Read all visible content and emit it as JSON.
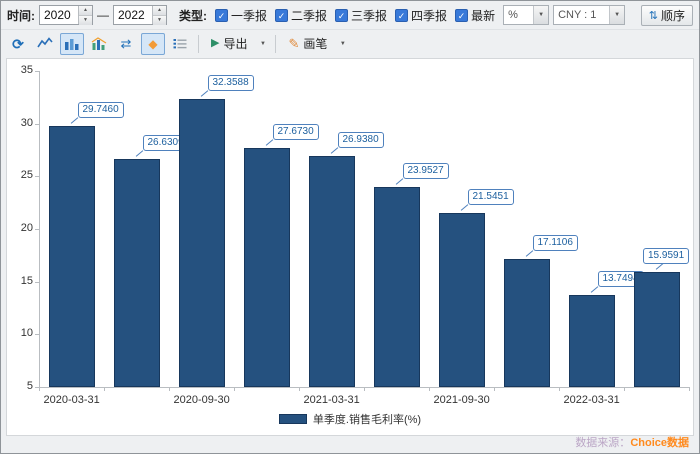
{
  "toolbar": {
    "time_label": "时间:",
    "year_from": "2020",
    "year_to": "2022",
    "dash": "—",
    "type_label": "类型:",
    "checkboxes": [
      {
        "label": "一季报",
        "checked": true
      },
      {
        "label": "二季报",
        "checked": true
      },
      {
        "label": "三季报",
        "checked": true
      },
      {
        "label": "四季报",
        "checked": true
      },
      {
        "label": "最新",
        "checked": true
      }
    ],
    "percent_dropdown": "%",
    "currency_dropdown": "CNY : 1",
    "order_label": "顺序"
  },
  "toolbar2": {
    "export_label": "导出",
    "brush_label": "画笔"
  },
  "icons": {
    "check": "✓",
    "spinner_up": "▲",
    "spinner_down": "▼",
    "caret": "▼",
    "updown": "⇅",
    "refresh": "⟳",
    "arrows": "⇄",
    "diamond": "◆",
    "play": "▶",
    "pencil": "✎"
  },
  "chart_data": {
    "type": "bar",
    "title": "",
    "xlabel": "",
    "ylabel": "",
    "values": [
      29.746,
      26.6309,
      32.3588,
      27.673,
      26.938,
      23.9527,
      21.5451,
      17.1106,
      13.7494,
      15.9591
    ],
    "value_labels": [
      "29.7460",
      "26.6309",
      "32.3588",
      "27.6730",
      "26.9380",
      "23.9527",
      "21.5451",
      "17.1106",
      "13.7494",
      "15.9591"
    ],
    "x_axis_labels": [
      {
        "index": 0,
        "label": "2020-03-31"
      },
      {
        "index": 2,
        "label": "2020-09-30"
      },
      {
        "index": 4,
        "label": "2021-03-31"
      },
      {
        "index": 6,
        "label": "2021-09-30"
      },
      {
        "index": 8,
        "label": "2022-03-31"
      }
    ],
    "y_ticks": [
      35,
      30,
      25,
      20,
      15,
      10,
      5
    ],
    "ylim": [
      5,
      35
    ],
    "grid": false,
    "legend_position": "bottom",
    "legend": "单季度.销售毛利率(%)",
    "bar_color": "#25517f",
    "bar_border": "#17375c",
    "callout_color": "#1c5f9e",
    "callout_border": "#4f81bd"
  },
  "footer": {
    "source_prefix": "数据来源：",
    "source_name": "Choice数据"
  }
}
